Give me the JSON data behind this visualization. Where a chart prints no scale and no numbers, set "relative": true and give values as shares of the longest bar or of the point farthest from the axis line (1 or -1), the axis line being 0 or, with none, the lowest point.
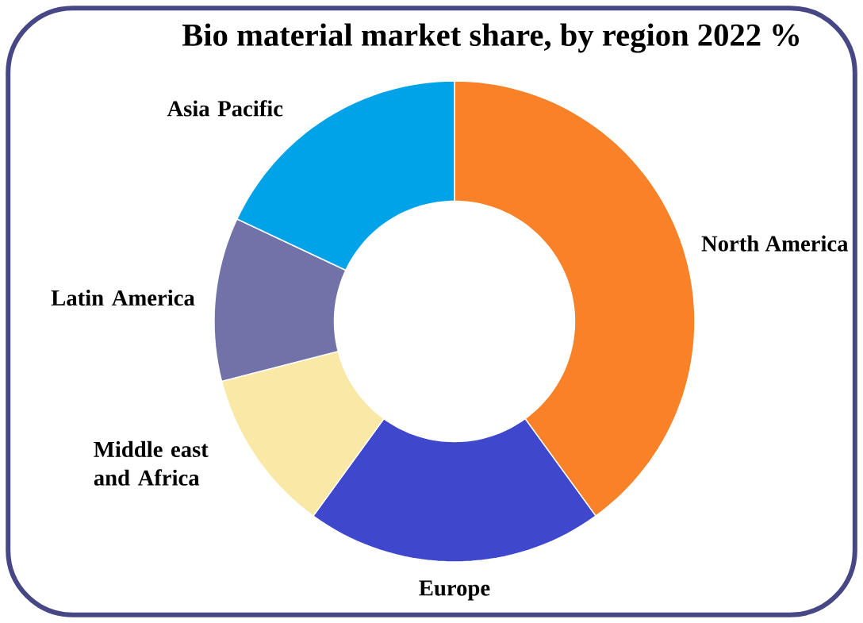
{
  "chart_data": {
    "type": "donut",
    "relative": true,
    "title": "Bio material market share, by region 2022 %",
    "categories": [
      "North America",
      "Europe",
      "Middle east and Africa",
      "Latin America",
      "Asia Pacific"
    ],
    "values": [
      40,
      20,
      11,
      11,
      18
    ],
    "colors": [
      "#f98127",
      "#3f48cc",
      "#fae8a6",
      "#7072a8",
      "#00a2e8"
    ]
  }
}
